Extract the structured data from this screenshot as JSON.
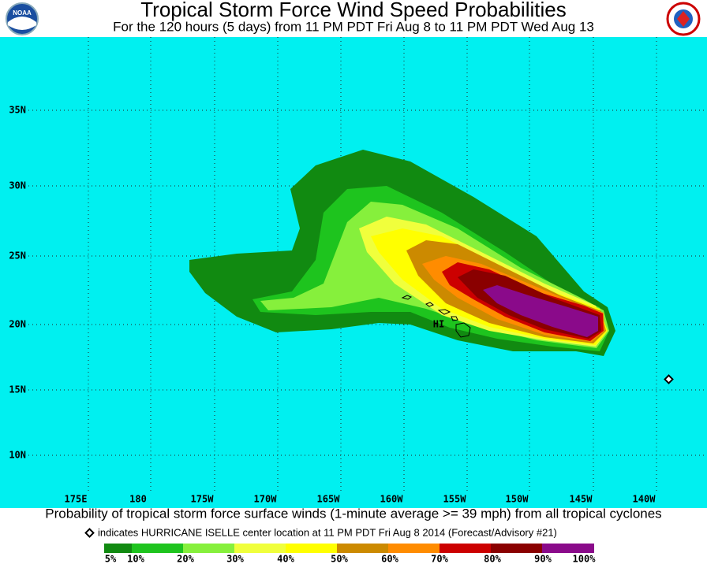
{
  "header": {
    "logo_left": "NOAA",
    "title": "Tropical Storm Force Wind Speed Probabilities",
    "subtitle": "For the 120 hours (5 days) from 11 PM PDT Fri Aug 8 to 11 PM PDT Wed Aug 13"
  },
  "map": {
    "lat_labels": [
      "35N",
      "30N",
      "25N",
      "20N",
      "15N",
      "10N"
    ],
    "lon_labels": [
      "175E",
      "180",
      "175W",
      "170W",
      "165W",
      "160W",
      "155W",
      "150W",
      "145W",
      "140W"
    ],
    "place_label": "HI"
  },
  "footer": {
    "caption": "Probability of tropical storm force surface winds (1-minute average >= 39 mph) from all tropical cyclones",
    "note": "indicates HURRICANE ISELLE center location at 11 PM PDT Fri Aug 8 2014 (Forecast/Advisory #21)",
    "legend": {
      "labels": [
        "5%",
        "10%",
        "20%",
        "30%",
        "40%",
        "50%",
        "60%",
        "70%",
        "80%",
        "90%",
        "100%"
      ],
      "colors": [
        "#118a11",
        "#1ec41e",
        "#86f03c",
        "#f0ff3c",
        "#ffff00",
        "#cc8a00",
        "#ff8c00",
        "#cc0000",
        "#8a0000",
        "#8a0a8a"
      ]
    }
  }
}
